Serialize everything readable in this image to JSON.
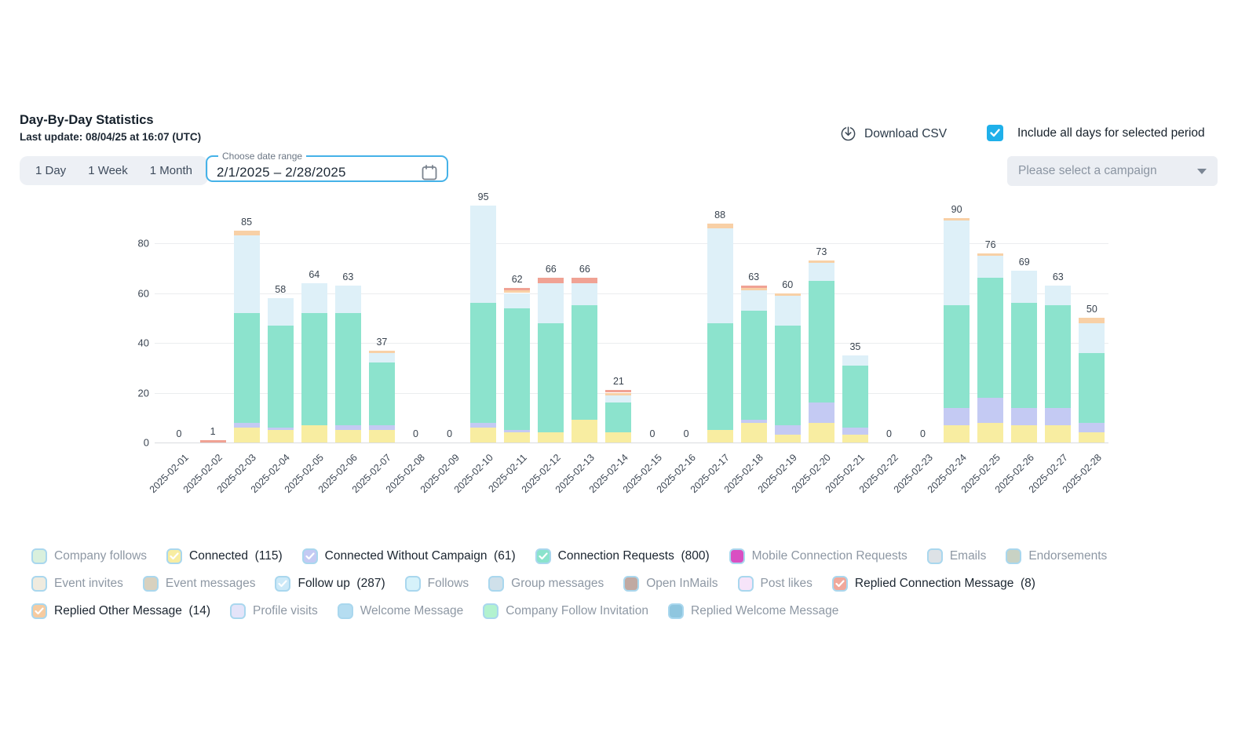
{
  "header": {
    "title": "Day-By-Day Statistics",
    "last_update": "Last update: 08/04/25 at 16:07 (UTC)",
    "period_buttons": [
      "1 Day",
      "1 Week",
      "1 Month"
    ],
    "date_range": {
      "label": "Choose date range",
      "value": "2/1/2025 – 2/28/2025"
    },
    "download_csv_label": "Download CSV",
    "include_all_days": {
      "label": "Include all days for selected period",
      "checked": true
    },
    "campaign_select": {
      "placeholder": "Please select a campaign"
    }
  },
  "colors": {
    "accent_blue": "#1fb0ea",
    "fieldset_border": "#45b2e8",
    "swatch_border": "#a9d7ee"
  },
  "chart_data": {
    "type": "bar",
    "stacked": true,
    "grid": true,
    "ylim": [
      0,
      95
    ],
    "yticks": [
      0,
      20,
      40,
      60,
      80
    ],
    "categories": [
      "2025-02-01",
      "2025-02-02",
      "2025-02-03",
      "2025-02-04",
      "2025-02-05",
      "2025-02-06",
      "2025-02-07",
      "2025-02-08",
      "2025-02-09",
      "2025-02-10",
      "2025-02-11",
      "2025-02-12",
      "2025-02-13",
      "2025-02-14",
      "2025-02-15",
      "2025-02-16",
      "2025-02-17",
      "2025-02-18",
      "2025-02-19",
      "2025-02-20",
      "2025-02-21",
      "2025-02-22",
      "2025-02-23",
      "2025-02-24",
      "2025-02-25",
      "2025-02-26",
      "2025-02-27",
      "2025-02-28"
    ],
    "series": [
      {
        "name": "Connected",
        "color": "#f8eda1",
        "values": [
          0,
          0,
          6,
          5,
          7,
          5,
          5,
          0,
          0,
          6,
          4,
          4,
          9,
          4,
          0,
          0,
          5,
          8,
          3,
          8,
          3,
          0,
          0,
          7,
          8,
          7,
          7,
          4
        ]
      },
      {
        "name": "Connected Without Campaign",
        "color": "#c4caf3",
        "values": [
          0,
          0,
          2,
          1,
          0,
          2,
          2,
          0,
          0,
          2,
          1,
          0,
          0,
          0,
          0,
          0,
          0,
          1,
          4,
          8,
          3,
          0,
          0,
          7,
          10,
          7,
          7,
          4
        ]
      },
      {
        "name": "Connection Requests",
        "color": "#8ce3cd",
        "values": [
          0,
          0,
          44,
          41,
          45,
          45,
          25,
          0,
          0,
          48,
          49,
          44,
          46,
          12,
          0,
          0,
          43,
          44,
          40,
          49,
          25,
          0,
          0,
          41,
          48,
          42,
          41,
          28
        ]
      },
      {
        "name": "Follow up",
        "color": "#def0f8",
        "values": [
          0,
          0,
          31,
          11,
          12,
          11,
          4,
          0,
          0,
          39,
          6,
          16,
          9,
          3,
          0,
          0,
          38,
          8,
          12,
          7,
          4,
          0,
          0,
          34,
          9,
          13,
          8,
          12
        ]
      },
      {
        "name": "Replied Other Message",
        "color": "#f8d0a6",
        "values": [
          0,
          0,
          2,
          0,
          0,
          0,
          1,
          0,
          0,
          0,
          1,
          0,
          0,
          1,
          0,
          0,
          2,
          1,
          1,
          1,
          0,
          0,
          0,
          1,
          1,
          0,
          0,
          2
        ]
      },
      {
        "name": "Replied Connection Message",
        "color": "#f0a294",
        "values": [
          0,
          1,
          0,
          0,
          0,
          0,
          0,
          0,
          0,
          0,
          1,
          2,
          2,
          1,
          0,
          0,
          0,
          1,
          0,
          0,
          0,
          0,
          0,
          0,
          0,
          0,
          0,
          0
        ]
      }
    ],
    "totals": [
      0,
      1,
      85,
      58,
      64,
      63,
      37,
      0,
      0,
      95,
      62,
      66,
      66,
      21,
      0,
      0,
      88,
      63,
      60,
      73,
      35,
      0,
      0,
      90,
      76,
      69,
      63,
      50
    ]
  },
  "legend": {
    "rows": [
      [
        {
          "label": "Company follows",
          "count": "",
          "color": "#d9f0dd",
          "checked": false
        },
        {
          "label": "Connected",
          "count": "(115)",
          "color": "#f8eda1",
          "checked": true
        },
        {
          "label": "Connected Without Campaign",
          "count": "(61)",
          "color": "#c4caf3",
          "checked": true
        },
        {
          "label": "Connection Requests",
          "count": "(800)",
          "color": "#8be3cc",
          "checked": true
        },
        {
          "label": "Mobile Connection Requests",
          "count": "",
          "color": "#d94fc2",
          "checked": false
        },
        {
          "label": "Emails",
          "count": "",
          "color": "#dde2e6",
          "checked": false
        },
        {
          "label": "Endorsements",
          "count": "",
          "color": "#c8d2c4",
          "checked": false
        }
      ],
      [
        {
          "label": "Event invites",
          "count": "",
          "color": "#efebdf",
          "checked": false
        },
        {
          "label": "Event messages",
          "count": "",
          "color": "#d8d1bf",
          "checked": false
        },
        {
          "label": "Follow up",
          "count": "(287)",
          "color": "#cce9f8",
          "checked": true
        },
        {
          "label": "Follows",
          "count": "",
          "color": "#d6f2fa",
          "checked": false
        },
        {
          "label": "Group messages",
          "count": "",
          "color": "#cfe0ea",
          "checked": false
        },
        {
          "label": "Open InMails",
          "count": "",
          "color": "#c0a9a2",
          "checked": false
        },
        {
          "label": "Post likes",
          "count": "",
          "color": "#f6e4f9",
          "checked": false
        },
        {
          "label": "Replied Connection Message",
          "count": "(8)",
          "color": "#f1a89b",
          "checked": true
        }
      ],
      [
        {
          "label": "Replied Other Message",
          "count": "(14)",
          "color": "#f6cba0",
          "checked": true
        },
        {
          "label": "Profile visits",
          "count": "",
          "color": "#e4e4f9",
          "checked": false
        },
        {
          "label": "Welcome Message",
          "count": "",
          "color": "#b5ddf1",
          "checked": false
        },
        {
          "label": "Company Follow Invitation",
          "count": "",
          "color": "#b2f2cf",
          "checked": false
        },
        {
          "label": "Replied Welcome Message",
          "count": "",
          "color": "#8fc6df",
          "checked": false
        }
      ]
    ]
  }
}
